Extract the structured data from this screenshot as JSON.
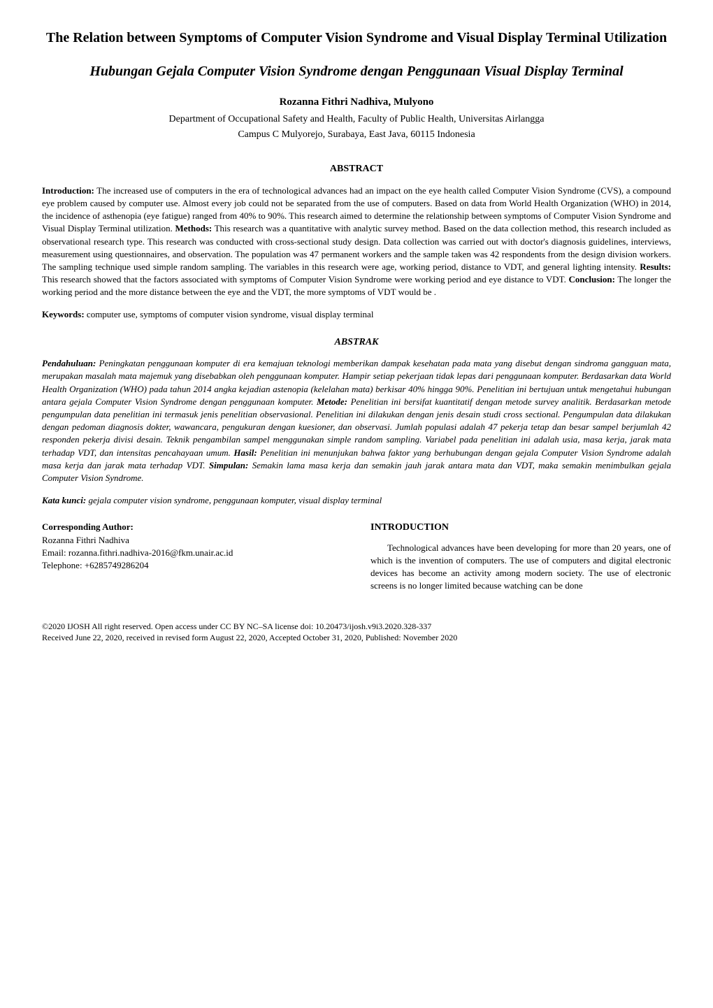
{
  "title_en": "The Relation between Symptoms of Computer Vision Syndrome and Visual Display Terminal Utilization",
  "title_id": "Hubungan Gejala Computer Vision Syndrome dengan Penggunaan Visual Display Terminal",
  "authors": "Rozanna Fithri Nadhiva, Mulyono",
  "affiliation_line1": "Department of Occupational Safety and Health, Faculty of Public Health, Universitas Airlangga",
  "affiliation_line2": "Campus C Mulyorejo, Surabaya, East Java, 60115 Indonesia",
  "abstract_heading": "ABSTRACT",
  "abstract": {
    "intro_label": "Introduction:",
    "intro_text": " The increased use of computers in the era of technological advances had an impact on the eye health called Computer Vision Syndrome (CVS), a compound eye problem caused by computer use. Almost every job could not be separated from the use of computers. Based on data from World Health Organization (WHO) in 2014, the incidence of asthenopia (eye fatigue) ranged from 40% to 90%. This research aimed to determine the relationship between symptoms of Computer Vision Syndrome and Visual Display Terminal utilization.  ",
    "methods_label": "Methods:",
    "methods_text": " This research was a quantitative with analytic survey method. Based on the data collection method, this research included as observational research type. This research was conducted with cross-sectional study design. Data collection was carried out with doctor's diagnosis guidelines, interviews, measurement using questionnaires, and observation. The population was 47 permanent workers and the sample taken was 42 respondents from the design division workers. The sampling technique used simple random sampling. The variables in this research were age, working period, distance to VDT, and general lighting intensity. ",
    "results_label": "Results:",
    "results_text": " This research showed that the factors associated with symptoms of Computer Vision Syndrome were working period and eye distance to VDT. ",
    "conclusion_label": "Conclusion:",
    "conclusion_text": " The longer the working period and the more distance between the eye and the VDT, the more symptoms of VDT would be ."
  },
  "keywords_label": "Keywords:",
  "keywords_text": " computer use, symptoms of computer vision syndrome, visual display terminal",
  "abstrak_heading": "ABSTRAK",
  "abstrak": {
    "intro_label": "Pendahuluan:",
    "intro_text": " Peningkatan penggunaan komputer di era kemajuan teknologi memberikan dampak kesehatan pada mata yang disebut dengan sindroma gangguan mata, merupakan masalah mata majemuk yang disebabkan oleh penggunaan komputer. Hampir setiap pekerjaan tidak lepas dari penggunaan komputer. Berdasarkan data World Health Organization (WHO) pada tahun 2014 angka kejadian astenopia (kelelahan mata) berkisar 40% hingga 90%. Penelitian ini bertujuan untuk mengetahui hubungan antara gejala Computer Vision Syndrome dengan penggunaan komputer. ",
    "metode_label": "Metode:",
    "metode_text": " Penelitian ini bersifat kuantitatif dengan metode survey analitik. Berdasarkan metode pengumpulan data penelitian ini termasuk jenis penelitian observasional. Penelitian ini dilakukan dengan jenis desain studi cross sectional. Pengumpulan data dilakukan dengan pedoman diagnosis dokter, wawancara, pengukuran dengan kuesioner, dan observasi. Jumlah populasi adalah 47 pekerja tetap dan besar sampel berjumlah 42 responden pekerja divisi desain. Teknik pengambilan sampel menggunakan simple random sampling. Variabel pada penelitian ini adalah usia, masa kerja, jarak mata terhadap VDT, dan intensitas pencahayaan umum. ",
    "hasil_label": "Hasil:",
    "hasil_text": " Penelitian ini menunjukan bahwa faktor yang berhubungan dengan gejala Computer Vision Syndrome adalah masa kerja dan jarak mata terhadap VDT. ",
    "simpulan_label": "Simpulan:",
    "simpulan_text": " Semakin lama masa kerja dan semakin jauh jarak antara mata dan VDT, maka semakin menimbulkan gejala Computer Vision Syndrome."
  },
  "kata_kunci_label": "Kata kunci:",
  "kata_kunci_text": " gejala computer vision syndrome, penggunaan komputer, visual display terminal",
  "corresponding": {
    "heading": "Corresponding Author:",
    "name": "Rozanna Fithri Nadhiva",
    "email": "Email: rozanna.fithri.nadhiva-2016@fkm.unair.ac.id",
    "telephone": "Telephone: +6285749286204"
  },
  "introduction": {
    "heading": "INTRODUCTION",
    "para1": "Technological advances have been developing for more than 20 years, one of which is the invention of computers. The use of computers and digital electronic devices has become an activity among modern society. The use of electronic screens is no longer limited because watching can be done"
  },
  "footer_line1": "©2020 IJOSH All right reserved. Open access under CC BY NC–SA license doi: 10.20473/ijosh.v9i3.2020.328-337",
  "footer_line2": "Received June 22, 2020, received in revised form August 22, 2020, Accepted October 31, 2020, Published: November 2020"
}
